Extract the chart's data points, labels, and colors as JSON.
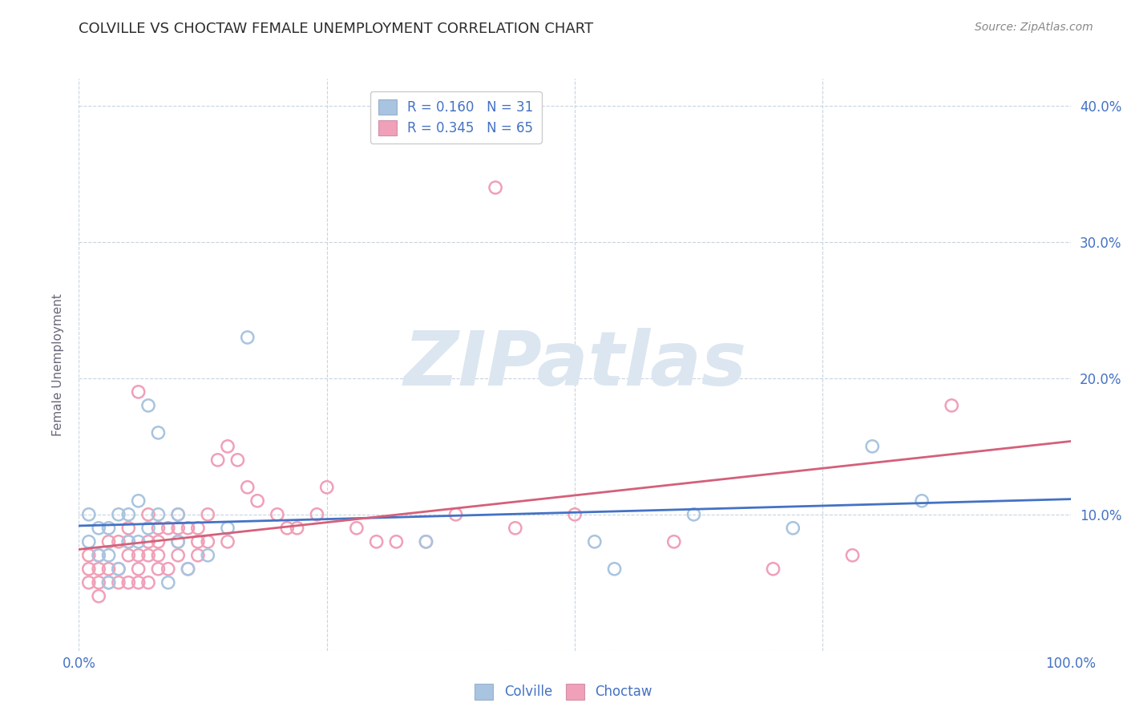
{
  "title": "COLVILLE VS CHOCTAW FEMALE UNEMPLOYMENT CORRELATION CHART",
  "source": "Source: ZipAtlas.com",
  "ylabel": "Female Unemployment",
  "xlim": [
    0.0,
    1.0
  ],
  "ylim": [
    0.0,
    0.42
  ],
  "x_ticks": [
    0.0,
    0.25,
    0.5,
    0.75,
    1.0
  ],
  "y_ticks": [
    0.0,
    0.1,
    0.2,
    0.3,
    0.4
  ],
  "colville_R": 0.16,
  "colville_N": 31,
  "choctaw_R": 0.345,
  "choctaw_N": 65,
  "colville_color": "#a8c4e0",
  "choctaw_color": "#f0a0b8",
  "colville_line_color": "#4472c4",
  "choctaw_line_color": "#d4607a",
  "watermark_color": "#dce6f0",
  "title_color": "#2d2d2d",
  "axis_label_color": "#4472c4",
  "source_color": "#888888",
  "ylabel_color": "#666677",
  "background_color": "#ffffff",
  "grid_color": "#c8d4e0",
  "colville_x": [
    0.01,
    0.01,
    0.02,
    0.02,
    0.03,
    0.03,
    0.03,
    0.04,
    0.04,
    0.05,
    0.05,
    0.06,
    0.06,
    0.07,
    0.07,
    0.08,
    0.08,
    0.09,
    0.1,
    0.1,
    0.11,
    0.13,
    0.15,
    0.17,
    0.35,
    0.52,
    0.54,
    0.62,
    0.72,
    0.8,
    0.85
  ],
  "colville_y": [
    0.08,
    0.1,
    0.07,
    0.09,
    0.05,
    0.07,
    0.09,
    0.06,
    0.1,
    0.08,
    0.1,
    0.08,
    0.11,
    0.09,
    0.18,
    0.1,
    0.16,
    0.05,
    0.1,
    0.08,
    0.06,
    0.07,
    0.09,
    0.23,
    0.08,
    0.08,
    0.06,
    0.1,
    0.09,
    0.15,
    0.11
  ],
  "choctaw_x": [
    0.01,
    0.01,
    0.01,
    0.02,
    0.02,
    0.02,
    0.02,
    0.03,
    0.03,
    0.03,
    0.04,
    0.04,
    0.04,
    0.05,
    0.05,
    0.05,
    0.05,
    0.06,
    0.06,
    0.06,
    0.06,
    0.07,
    0.07,
    0.07,
    0.07,
    0.08,
    0.08,
    0.08,
    0.08,
    0.09,
    0.09,
    0.1,
    0.1,
    0.1,
    0.1,
    0.11,
    0.11,
    0.12,
    0.12,
    0.12,
    0.13,
    0.13,
    0.14,
    0.15,
    0.15,
    0.16,
    0.17,
    0.18,
    0.2,
    0.21,
    0.22,
    0.24,
    0.25,
    0.28,
    0.3,
    0.32,
    0.35,
    0.38,
    0.42,
    0.44,
    0.5,
    0.6,
    0.7,
    0.78,
    0.88
  ],
  "choctaw_y": [
    0.05,
    0.06,
    0.07,
    0.04,
    0.05,
    0.06,
    0.07,
    0.05,
    0.06,
    0.08,
    0.05,
    0.06,
    0.08,
    0.05,
    0.07,
    0.08,
    0.09,
    0.05,
    0.06,
    0.07,
    0.19,
    0.05,
    0.07,
    0.08,
    0.1,
    0.06,
    0.07,
    0.08,
    0.09,
    0.06,
    0.09,
    0.07,
    0.08,
    0.09,
    0.1,
    0.06,
    0.09,
    0.07,
    0.08,
    0.09,
    0.08,
    0.1,
    0.14,
    0.08,
    0.15,
    0.14,
    0.12,
    0.11,
    0.1,
    0.09,
    0.09,
    0.1,
    0.12,
    0.09,
    0.08,
    0.08,
    0.08,
    0.1,
    0.34,
    0.09,
    0.1,
    0.08,
    0.06,
    0.07,
    0.18
  ]
}
